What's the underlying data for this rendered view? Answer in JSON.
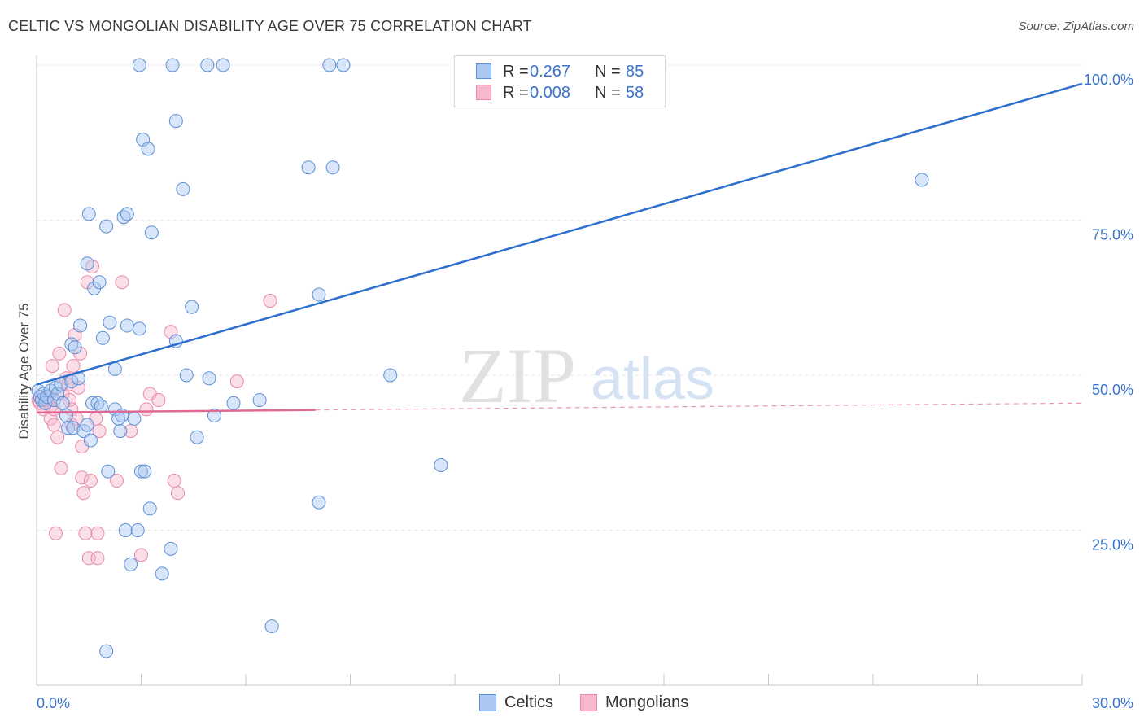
{
  "title": "CELTIC VS MONGOLIAN DISABILITY AGE OVER 75 CORRELATION CHART",
  "source": "Source: ZipAtlas.com",
  "watermark": {
    "zip": "ZIP",
    "atlas": "atlas"
  },
  "legend": {
    "celtic": {
      "r_label": "R =",
      "r_value": "0.267",
      "n_label": "N =",
      "n_value": "85"
    },
    "mongolian": {
      "r_label": "R =",
      "r_value": "0.008",
      "n_label": "N =",
      "n_value": "58"
    }
  },
  "bottom_legend": {
    "celtic": "Celtics",
    "mongolian": "Mongolians"
  },
  "colors": {
    "celtic_fill": "#aac8f2",
    "celtic_stroke": "#5b8fd6",
    "celtic_line": "#2d6fcc",
    "mongolian_fill": "#f7b8cb",
    "mongolian_stroke": "#e889a8",
    "mongolian_line": "#e06a95",
    "tick_label": "#3a73c9",
    "grid": "#e3e3e3"
  },
  "chart_data": {
    "type": "scatter",
    "title": "CELTIC VS MONGOLIAN DISABILITY AGE OVER 75 CORRELATION CHART",
    "xlabel": "",
    "ylabel": "Disability Age Over 75",
    "xlim": [
      0,
      30
    ],
    "ylim": [
      0,
      100
    ],
    "x_tick_labels": [
      "0.0%",
      "30.0%"
    ],
    "y_tick_labels": [
      {
        "value": 25,
        "label": "25.0%"
      },
      {
        "value": 50,
        "label": "50.0%"
      },
      {
        "value": 75,
        "label": "75.0%"
      },
      {
        "value": 100,
        "label": "100.0%"
      }
    ],
    "grid": true,
    "series": [
      {
        "name": "Celtics",
        "points": [
          [
            0.05,
            47.5
          ],
          [
            0.1,
            46.5
          ],
          [
            0.15,
            46.0
          ],
          [
            0.2,
            47.0
          ],
          [
            0.25,
            45.5
          ],
          [
            0.3,
            46.5
          ],
          [
            0.4,
            47.5
          ],
          [
            0.5,
            46.0
          ],
          [
            0.55,
            48.0
          ],
          [
            0.6,
            47.0
          ],
          [
            0.7,
            48.5
          ],
          [
            0.75,
            45.5
          ],
          [
            0.85,
            43.5
          ],
          [
            0.9,
            41.5
          ],
          [
            1.0,
            49.0
          ],
          [
            1.0,
            55.0
          ],
          [
            1.05,
            41.5
          ],
          [
            1.1,
            54.5
          ],
          [
            1.2,
            49.5
          ],
          [
            1.25,
            58.0
          ],
          [
            1.35,
            41.0
          ],
          [
            1.45,
            68.0
          ],
          [
            1.45,
            42.0
          ],
          [
            1.5,
            76.0
          ],
          [
            1.55,
            39.5
          ],
          [
            1.6,
            45.5
          ],
          [
            1.65,
            64.0
          ],
          [
            1.75,
            45.5
          ],
          [
            1.8,
            65.0
          ],
          [
            1.85,
            45.0
          ],
          [
            1.9,
            56.0
          ],
          [
            2.0,
            5.5
          ],
          [
            2.0,
            74.0
          ],
          [
            2.05,
            34.5
          ],
          [
            2.1,
            58.5
          ],
          [
            2.25,
            51.0
          ],
          [
            2.25,
            44.5
          ],
          [
            2.35,
            43.0
          ],
          [
            2.4,
            41.0
          ],
          [
            2.45,
            43.5
          ],
          [
            2.5,
            75.5
          ],
          [
            2.55,
            25.0
          ],
          [
            2.6,
            76.0
          ],
          [
            2.6,
            58.0
          ],
          [
            2.7,
            19.5
          ],
          [
            2.8,
            43.0
          ],
          [
            2.9,
            25.0
          ],
          [
            2.95,
            57.5
          ],
          [
            2.95,
            100.0
          ],
          [
            3.0,
            34.5
          ],
          [
            3.05,
            88.0
          ],
          [
            3.1,
            34.5
          ],
          [
            3.2,
            86.5
          ],
          [
            3.25,
            28.5
          ],
          [
            3.3,
            73.0
          ],
          [
            3.6,
            18.0
          ],
          [
            3.85,
            22.0
          ],
          [
            3.9,
            100.0
          ],
          [
            4.0,
            91.0
          ],
          [
            4.0,
            55.5
          ],
          [
            4.2,
            80.0
          ],
          [
            4.3,
            50.0
          ],
          [
            4.45,
            61.0
          ],
          [
            4.6,
            40.0
          ],
          [
            4.9,
            100.0
          ],
          [
            4.95,
            49.5
          ],
          [
            5.1,
            43.5
          ],
          [
            5.35,
            100.0
          ],
          [
            5.65,
            45.5
          ],
          [
            6.4,
            46.0
          ],
          [
            6.75,
            9.5
          ],
          [
            7.8,
            83.5
          ],
          [
            8.1,
            63.0
          ],
          [
            8.1,
            29.5
          ],
          [
            8.4,
            100.0
          ],
          [
            8.5,
            83.5
          ],
          [
            8.8,
            100.0
          ],
          [
            10.15,
            50.0
          ],
          [
            11.6,
            35.5
          ],
          [
            25.4,
            81.5
          ]
        ],
        "trend": {
          "x": [
            0,
            30
          ],
          "y": [
            48.5,
            97.0
          ]
        }
      },
      {
        "name": "Mongolians",
        "points": [
          [
            0.05,
            46.0
          ],
          [
            0.1,
            45.5
          ],
          [
            0.15,
            46.5
          ],
          [
            0.2,
            44.5
          ],
          [
            0.25,
            45.5
          ],
          [
            0.3,
            46.0
          ],
          [
            0.35,
            46.5
          ],
          [
            0.4,
            45.0
          ],
          [
            0.4,
            43.0
          ],
          [
            0.45,
            51.5
          ],
          [
            0.5,
            44.5
          ],
          [
            0.5,
            42.0
          ],
          [
            0.55,
            24.5
          ],
          [
            0.6,
            40.0
          ],
          [
            0.65,
            53.5
          ],
          [
            0.7,
            35.0
          ],
          [
            0.75,
            47.0
          ],
          [
            0.8,
            60.5
          ],
          [
            0.85,
            49.5
          ],
          [
            0.9,
            48.5
          ],
          [
            0.95,
            46.0
          ],
          [
            1.0,
            44.5
          ],
          [
            1.0,
            42.0
          ],
          [
            1.05,
            51.5
          ],
          [
            1.1,
            56.5
          ],
          [
            1.15,
            43.0
          ],
          [
            1.2,
            48.0
          ],
          [
            1.25,
            53.5
          ],
          [
            1.3,
            33.5
          ],
          [
            1.3,
            38.5
          ],
          [
            1.35,
            31.0
          ],
          [
            1.4,
            24.5
          ],
          [
            1.45,
            65.0
          ],
          [
            1.5,
            20.5
          ],
          [
            1.55,
            33.0
          ],
          [
            1.6,
            67.5
          ],
          [
            1.7,
            43.0
          ],
          [
            1.75,
            20.5
          ],
          [
            1.75,
            24.5
          ],
          [
            1.8,
            41.0
          ],
          [
            2.3,
            33.0
          ],
          [
            2.45,
            65.0
          ],
          [
            2.7,
            41.0
          ],
          [
            3.0,
            21.0
          ],
          [
            3.15,
            44.5
          ],
          [
            3.25,
            47.0
          ],
          [
            3.5,
            46.0
          ],
          [
            3.85,
            57.0
          ],
          [
            3.95,
            33.0
          ],
          [
            4.05,
            31.0
          ],
          [
            5.75,
            49.0
          ],
          [
            6.7,
            62.0
          ]
        ],
        "trend": {
          "x": [
            0,
            30
          ],
          "y": [
            44.0,
            45.5
          ],
          "solid_until_x": 8
        }
      }
    ]
  }
}
